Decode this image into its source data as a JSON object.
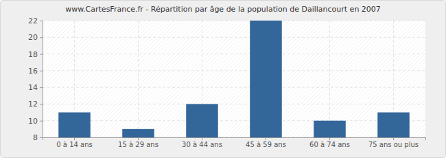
{
  "chart_data": {
    "type": "bar",
    "title": "www.CartesFrance.fr - Répartition par âge de la population de Daillancourt en 2007",
    "categories": [
      "0 à 14 ans",
      "15 à 29 ans",
      "30 à 44 ans",
      "45 à 59 ans",
      "60 à 74 ans",
      "75 ans ou plus"
    ],
    "values": [
      11,
      9,
      12,
      22,
      10,
      11
    ],
    "color": "#336699",
    "ylim": [
      8,
      22
    ],
    "yticks": [
      8,
      10,
      12,
      14,
      16,
      18,
      20,
      22
    ],
    "grid": true
  }
}
